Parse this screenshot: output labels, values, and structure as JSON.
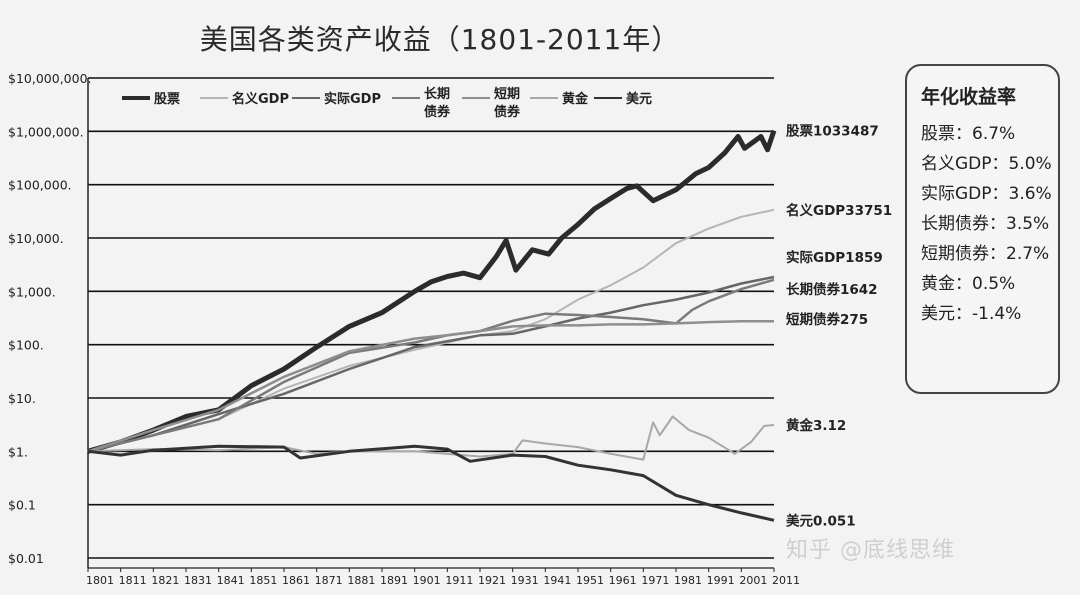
{
  "title": "美国各类资产收益（1801-2011年）",
  "watermark": "知乎 @底线思维",
  "rates_box": {
    "heading": "年化收益率",
    "rows": [
      "股票：6.7%",
      "名义GDP：5.0%",
      "实际GDP：3.6%",
      "长期债券：3.5%",
      "短期债券：2.7%",
      "黄金：0.5%",
      "美元：-1.4%"
    ]
  },
  "colors": {
    "stocks": "#2b2b2b",
    "nominal_gdp": "#b5b5b5",
    "real_gdp": "#666666",
    "long_bonds": "#7a7a7a",
    "short_bonds": "#8e8e8e",
    "gold": "#a8a8a8",
    "dollar": "#333333",
    "grid": "#111111"
  },
  "chart_data": {
    "type": "line",
    "title": "美国各类资产收益（1801-2011年）",
    "xlabel": "",
    "ylabel": "",
    "yscale": "log",
    "ylim": [
      0.01,
      10000000
    ],
    "xlim": [
      1801,
      2011
    ],
    "grid": true,
    "legend_position": "top-left",
    "x_ticks": [
      "1801",
      "1811",
      "1821",
      "1831",
      "1841",
      "1851",
      "1861",
      "1871",
      "1881",
      "1891",
      "1901",
      "1911",
      "1921",
      "1931",
      "1941",
      "1951",
      "1961",
      "1971",
      "1981",
      "1991",
      "2001",
      "2011"
    ],
    "y_ticks": [
      {
        "value": 10000000,
        "label": "$10,000,000."
      },
      {
        "value": 1000000,
        "label": "$1,000,000."
      },
      {
        "value": 100000,
        "label": "$100,000."
      },
      {
        "value": 10000,
        "label": "$10,000."
      },
      {
        "value": 1000,
        "label": "$1,000."
      },
      {
        "value": 100,
        "label": "$100."
      },
      {
        "value": 10,
        "label": "$10."
      },
      {
        "value": 1,
        "label": "$1."
      },
      {
        "value": 0.1,
        "label": "$0.1"
      },
      {
        "value": 0.01,
        "label": "$0.01"
      }
    ],
    "series": [
      {
        "key": "stocks",
        "name": "股票",
        "end_label": "股票1033487",
        "width": 5,
        "points": [
          [
            1801,
            1
          ],
          [
            1811,
            1.5
          ],
          [
            1821,
            2.5
          ],
          [
            1831,
            4.5
          ],
          [
            1841,
            6
          ],
          [
            1851,
            17
          ],
          [
            1861,
            35
          ],
          [
            1871,
            90
          ],
          [
            1881,
            220
          ],
          [
            1891,
            400
          ],
          [
            1901,
            1000
          ],
          [
            1906,
            1500
          ],
          [
            1911,
            1900
          ],
          [
            1916,
            2200
          ],
          [
            1921,
            1800
          ],
          [
            1926,
            4500
          ],
          [
            1929,
            9000
          ],
          [
            1932,
            2500
          ],
          [
            1937,
            6000
          ],
          [
            1942,
            5000
          ],
          [
            1946,
            10000
          ],
          [
            1951,
            18000
          ],
          [
            1956,
            35000
          ],
          [
            1961,
            55000
          ],
          [
            1966,
            85000
          ],
          [
            1969,
            95000
          ],
          [
            1974,
            50000
          ],
          [
            1981,
            80000
          ],
          [
            1987,
            160000
          ],
          [
            1991,
            210000
          ],
          [
            1996,
            400000
          ],
          [
            2000,
            800000
          ],
          [
            2002,
            480000
          ],
          [
            2007,
            800000
          ],
          [
            2009,
            450000
          ],
          [
            2011,
            1033487
          ]
        ]
      },
      {
        "key": "nominal_gdp",
        "name": "名义GDP",
        "end_label": "名义GDP33751",
        "width": 2,
        "points": [
          [
            1801,
            1
          ],
          [
            1821,
            2
          ],
          [
            1841,
            4
          ],
          [
            1861,
            15
          ],
          [
            1881,
            40
          ],
          [
            1901,
            80
          ],
          [
            1921,
            150
          ],
          [
            1931,
            180
          ],
          [
            1941,
            300
          ],
          [
            1951,
            700
          ],
          [
            1961,
            1300
          ],
          [
            1971,
            2800
          ],
          [
            1981,
            8000
          ],
          [
            1991,
            15000
          ],
          [
            2001,
            25000
          ],
          [
            2011,
            33751
          ]
        ]
      },
      {
        "key": "real_gdp",
        "name": "实际GDP",
        "end_label": "实际GDP1859",
        "width": 2.5,
        "points": [
          [
            1801,
            1
          ],
          [
            1821,
            2
          ],
          [
            1841,
            5
          ],
          [
            1861,
            12
          ],
          [
            1881,
            35
          ],
          [
            1901,
            90
          ],
          [
            1921,
            150
          ],
          [
            1931,
            160
          ],
          [
            1941,
            220
          ],
          [
            1951,
            310
          ],
          [
            1961,
            400
          ],
          [
            1971,
            550
          ],
          [
            1981,
            700
          ],
          [
            1991,
            950
          ],
          [
            2001,
            1400
          ],
          [
            2011,
            1859
          ]
        ]
      },
      {
        "key": "long_bonds",
        "name": "长期债券",
        "end_label": "长期债券1642",
        "width": 2.5,
        "points": [
          [
            1801,
            1
          ],
          [
            1821,
            2
          ],
          [
            1841,
            4
          ],
          [
            1861,
            20
          ],
          [
            1881,
            70
          ],
          [
            1901,
            110
          ],
          [
            1911,
            150
          ],
          [
            1921,
            180
          ],
          [
            1931,
            280
          ],
          [
            1941,
            380
          ],
          [
            1951,
            360
          ],
          [
            1961,
            330
          ],
          [
            1971,
            300
          ],
          [
            1981,
            250
          ],
          [
            1986,
            450
          ],
          [
            1991,
            650
          ],
          [
            2001,
            1100
          ],
          [
            2011,
            1642
          ]
        ]
      },
      {
        "key": "short_bonds",
        "name": "短期债券",
        "end_label": "短期债券275",
        "width": 2.5,
        "points": [
          [
            1801,
            1
          ],
          [
            1821,
            2.5
          ],
          [
            1841,
            6
          ],
          [
            1861,
            25
          ],
          [
            1881,
            75
          ],
          [
            1901,
            130
          ],
          [
            1911,
            150
          ],
          [
            1921,
            180
          ],
          [
            1931,
            220
          ],
          [
            1941,
            230
          ],
          [
            1951,
            230
          ],
          [
            1961,
            240
          ],
          [
            1971,
            240
          ],
          [
            1981,
            250
          ],
          [
            1991,
            265
          ],
          [
            2001,
            275
          ],
          [
            2011,
            275
          ]
        ]
      },
      {
        "key": "gold",
        "name": "黄金",
        "end_label": "黄金3.12",
        "width": 2,
        "points": [
          [
            1801,
            1
          ],
          [
            1821,
            1.1
          ],
          [
            1841,
            1.05
          ],
          [
            1861,
            1.2
          ],
          [
            1871,
            0.9
          ],
          [
            1881,
            1.0
          ],
          [
            1901,
            1.0
          ],
          [
            1921,
            0.8
          ],
          [
            1931,
            0.9
          ],
          [
            1934,
            1.6
          ],
          [
            1941,
            1.4
          ],
          [
            1951,
            1.2
          ],
          [
            1961,
            0.9
          ],
          [
            1971,
            0.7
          ],
          [
            1974,
            3.5
          ],
          [
            1976,
            2.0
          ],
          [
            1980,
            4.5
          ],
          [
            1985,
            2.5
          ],
          [
            1991,
            1.8
          ],
          [
            1999,
            0.9
          ],
          [
            2004,
            1.5
          ],
          [
            2008,
            3.0
          ],
          [
            2011,
            3.12
          ]
        ]
      },
      {
        "key": "dollar",
        "name": "美元",
        "end_label": "美元0.051",
        "width": 3,
        "points": [
          [
            1801,
            1
          ],
          [
            1811,
            0.85
          ],
          [
            1821,
            1.05
          ],
          [
            1841,
            1.25
          ],
          [
            1861,
            1.2
          ],
          [
            1866,
            0.75
          ],
          [
            1881,
            1.0
          ],
          [
            1901,
            1.25
          ],
          [
            1911,
            1.1
          ],
          [
            1918,
            0.65
          ],
          [
            1931,
            0.85
          ],
          [
            1941,
            0.8
          ],
          [
            1951,
            0.55
          ],
          [
            1961,
            0.45
          ],
          [
            1971,
            0.35
          ],
          [
            1981,
            0.15
          ],
          [
            1991,
            0.1
          ],
          [
            2001,
            0.07
          ],
          [
            2011,
            0.051
          ]
        ]
      }
    ]
  }
}
